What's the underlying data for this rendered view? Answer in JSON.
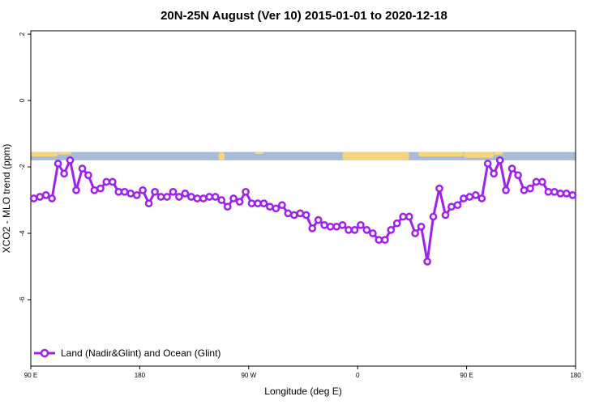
{
  "chart_data": {
    "type": "line",
    "title": "20N-25N August (Ver 10)   2015-01-01 to 2020-12-18",
    "xlabel": "Longitude (deg E)",
    "ylabel": "XCO2 - MLO trend (ppm)",
    "xlim": [
      -90,
      270
    ],
    "ylim": [
      -8,
      2.1
    ],
    "x_ticks": [
      {
        "value": -90,
        "label": "90 E"
      },
      {
        "value": -18,
        "label": "180"
      },
      {
        "value": 54,
        "label": "90 W"
      },
      {
        "value": 126,
        "label": "0"
      },
      {
        "value": 198,
        "label": "90 E"
      },
      {
        "value": 270,
        "label": "180"
      }
    ],
    "y_ticks": [
      {
        "value": 2,
        "label": "2"
      },
      {
        "value": 0,
        "label": "0"
      },
      {
        "value": -2,
        "label": "-2"
      },
      {
        "value": -4,
        "label": "-4"
      },
      {
        "value": -6,
        "label": "-6"
      }
    ],
    "grid": false,
    "legend_position": "bottom-left",
    "map_strip": {
      "ocean_color": "#a8bcd8",
      "land_color": "#f5d57e",
      "y_range": [
        -1.55,
        -1.8
      ]
    },
    "series": [
      {
        "name": "Land (Nadir&Glint) and Ocean (Glint)",
        "color": "#a020f0",
        "x": [
          -88,
          -84,
          -80,
          -76,
          -72,
          -68,
          -64,
          -60,
          -56,
          -52,
          -48,
          -44,
          -40,
          -36,
          -32,
          -28,
          -24,
          -20,
          -16,
          -12,
          -8,
          -4,
          0,
          4,
          8,
          12,
          16,
          20,
          24,
          28,
          32,
          36,
          40,
          44,
          48,
          52,
          56,
          60,
          64,
          68,
          72,
          76,
          80,
          84,
          88,
          92,
          96,
          100,
          104,
          108,
          112,
          116,
          120,
          124,
          128,
          132,
          136,
          140,
          144,
          148,
          152,
          156,
          160,
          164,
          168,
          172,
          176,
          180,
          184,
          188,
          192,
          196,
          200,
          204,
          208,
          212,
          216,
          220,
          224,
          228,
          232,
          236,
          240,
          244,
          248,
          252,
          256,
          260,
          264,
          268
        ],
        "y": [
          -2.95,
          -2.9,
          -2.85,
          -2.95,
          -1.9,
          -2.2,
          -1.8,
          -2.7,
          -2.05,
          -2.25,
          -2.7,
          -2.65,
          -2.45,
          -2.45,
          -2.75,
          -2.75,
          -2.8,
          -2.85,
          -2.7,
          -3.1,
          -2.75,
          -2.9,
          -2.9,
          -2.75,
          -2.9,
          -2.8,
          -2.9,
          -2.95,
          -2.95,
          -2.9,
          -2.9,
          -3.0,
          -3.2,
          -2.95,
          -3.05,
          -2.75,
          -3.1,
          -3.1,
          -3.1,
          -3.2,
          -3.25,
          -3.15,
          -3.4,
          -3.45,
          -3.4,
          -3.45,
          -3.85,
          -3.6,
          -3.75,
          -3.8,
          -3.8,
          -3.75,
          -3.9,
          -3.9,
          -3.75,
          -3.9,
          -4.0,
          -4.2,
          -4.2,
          -3.9,
          -3.7,
          -3.5,
          -3.5,
          -4.0,
          -3.8,
          -4.85,
          -3.5,
          -2.65,
          -3.45,
          -3.2,
          -3.15,
          -2.95,
          -2.9,
          -2.85,
          -2.95,
          -1.9,
          -2.2,
          -1.8,
          -2.7,
          -2.05,
          -2.25,
          -2.7,
          -2.65,
          -2.45,
          -2.45,
          -2.75,
          -2.75,
          -2.8,
          -2.8,
          -2.85
        ]
      }
    ]
  }
}
